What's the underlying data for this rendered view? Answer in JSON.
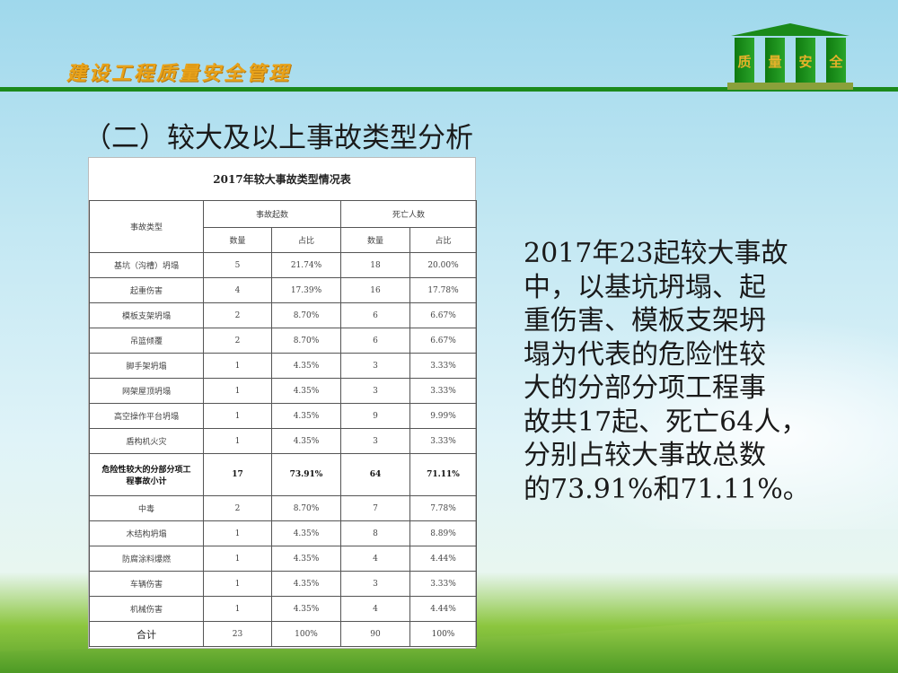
{
  "header": {
    "brand": "建设工程质量安全管理",
    "logo_chars": [
      "质",
      "量",
      "安",
      "全"
    ]
  },
  "slide_title": "（二）较大及以上事故类型分析",
  "table": {
    "title": "2017年较大事故类型情况表",
    "headers": {
      "type": "事故类型",
      "accidents": "事故起数",
      "deaths": "死亡人数",
      "count": "数量",
      "ratio": "占比"
    },
    "rows": [
      [
        "基坑（沟槽）坍塌",
        "5",
        "21.74%",
        "18",
        "20.00%"
      ],
      [
        "起重伤害",
        "4",
        "17.39%",
        "16",
        "17.78%"
      ],
      [
        "模板支架坍塌",
        "2",
        "8.70%",
        "6",
        "6.67%"
      ],
      [
        "吊篮倾覆",
        "2",
        "8.70%",
        "6",
        "6.67%"
      ],
      [
        "脚手架坍塌",
        "1",
        "4.35%",
        "3",
        "3.33%"
      ],
      [
        "网架屋顶坍塌",
        "1",
        "4.35%",
        "3",
        "3.33%"
      ],
      [
        "高空操作平台坍塌",
        "1",
        "4.35%",
        "9",
        "9.99%"
      ],
      [
        "盾构机火灾",
        "1",
        "4.35%",
        "3",
        "3.33%"
      ],
      [
        "危险性较大的分部分项工程事故小计",
        "17",
        "73.91%",
        "64",
        "71.11%"
      ],
      [
        "中毒",
        "2",
        "8.70%",
        "7",
        "7.78%"
      ],
      [
        "木结构坍塌",
        "1",
        "4.35%",
        "8",
        "8.89%"
      ],
      [
        "防腐涂料爆燃",
        "1",
        "4.35%",
        "4",
        "4.44%"
      ],
      [
        "车辆伤害",
        "1",
        "4.35%",
        "3",
        "3.33%"
      ],
      [
        "机械伤害",
        "1",
        "4.35%",
        "4",
        "4.44%"
      ],
      [
        "合计",
        "23",
        "100%",
        "90",
        "100%"
      ]
    ]
  },
  "summary_lines": [
    "2017年23起较大事故",
    "中，以基坑坍塌、起",
    "重伤害、模板支架坍",
    "塌为代表的危险性较",
    "大的分部分项工程事",
    "故共17起、死亡64人，",
    "分别占较大事故总数",
    "的73.91%和71.11%。"
  ],
  "colors": {
    "brand": "#e8a21a",
    "rule": "#1c8a1c"
  }
}
